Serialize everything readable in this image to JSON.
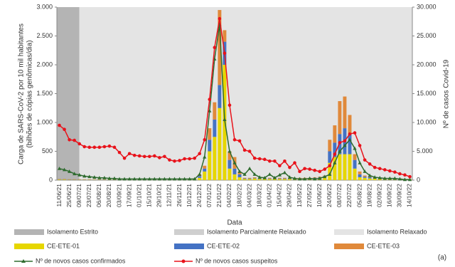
{
  "chart_data": {
    "type": "combo",
    "categories": [
      "11/06/21",
      null,
      "25/06/21",
      null,
      "09/07/21",
      null,
      "23/07/21",
      null,
      "06/08/21",
      null,
      "20/08/21",
      null,
      "03/09/21",
      null,
      "17/09/21",
      null,
      "01/10/21",
      null,
      "15/10/21",
      null,
      "29/10/21",
      null,
      "12/11/21",
      null,
      "26/11/21",
      null,
      "10/12/21",
      null,
      "24/12/21",
      null,
      "07/01/22",
      null,
      "21/01/22",
      null,
      "04/02/22",
      null,
      "18/02/22",
      null,
      "04/03/22",
      null,
      "18/03/22",
      null,
      "01/04/22",
      null,
      "15/04/22",
      null,
      "29/04/22",
      null,
      "13/05/22",
      null,
      "27/05/22",
      null,
      "10/06/22",
      null,
      "24/06/22",
      null,
      "08/07/22",
      null,
      "22/07/22",
      null,
      "05/08/22",
      null,
      "19/08/22",
      null,
      "02/09/22",
      null,
      "16/09/22",
      null,
      "30/09/22",
      null,
      "14/10/22"
    ],
    "x_label": "Data",
    "y_label": [
      "Carga de SARS-CoV-2 por 10 mil habitantes",
      "(bilhões de cópias genômicas/dia)"
    ],
    "y2_label": "Nº de casos Covid-19",
    "annotation": "(a)",
    "ylim": [
      0,
      3000
    ],
    "yticks": [
      0,
      {
        "value": 500,
        "label": "500"
      },
      {
        "value": 1000,
        "label": "1.000"
      },
      {
        "value": 1500,
        "label": "1.500"
      },
      {
        "value": 2000,
        "label": "2.000"
      },
      {
        "value": 2500,
        "label": "2.500"
      },
      {
        "value": 3000,
        "label": "3.000"
      }
    ],
    "y2lim": [
      0,
      30000
    ],
    "y2ticks": [
      0,
      {
        "value": 5000,
        "label": "5.000"
      },
      {
        "value": 10000,
        "label": "10.000"
      },
      {
        "value": 15000,
        "label": "15.000"
      },
      {
        "value": 20000,
        "label": "20.000"
      },
      {
        "value": 25000,
        "label": "25.000"
      },
      {
        "value": 30000,
        "label": "30.000"
      }
    ],
    "periods": [
      {
        "name": "Isolamento Estrito",
        "color": "#b4b4b4",
        "start": "11/06/21",
        "end": "09/07/21"
      },
      {
        "name": "Isolamento Parcialmente Relaxado",
        "color": "#cfcfcf"
      },
      {
        "name": "Isolamento Relaxado",
        "color": "#e4e4e4",
        "start": "09/07/21",
        "end": "14/10/22"
      }
    ],
    "series": [
      {
        "name": "CE-ETE-01",
        "color": "#e6d600",
        "kind": "bar",
        "values": [
          10,
          10,
          5,
          5,
          5,
          5,
          5,
          5,
          5,
          5,
          5,
          5,
          5,
          5,
          5,
          5,
          5,
          5,
          5,
          5,
          5,
          5,
          5,
          5,
          5,
          5,
          10,
          20,
          40,
          150,
          500,
          750,
          1250,
          2000,
          200,
          100,
          50,
          20,
          20,
          30,
          20,
          20,
          20,
          20,
          20,
          20,
          20,
          20,
          20,
          20,
          20,
          30,
          40,
          60,
          300,
          400,
          450,
          450,
          450,
          200,
          50,
          40,
          30,
          30,
          20,
          20,
          20,
          10,
          10,
          10,
          10
        ]
      },
      {
        "name": "CE-ETE-02",
        "color": "#4472c4",
        "kind": "bar",
        "values": [
          5,
          5,
          5,
          5,
          5,
          5,
          5,
          5,
          5,
          5,
          5,
          5,
          5,
          5,
          5,
          5,
          5,
          5,
          5,
          5,
          5,
          5,
          5,
          5,
          5,
          5,
          5,
          5,
          30,
          50,
          200,
          300,
          400,
          400,
          150,
          100,
          50,
          10,
          10,
          10,
          10,
          10,
          10,
          10,
          10,
          10,
          10,
          10,
          10,
          10,
          10,
          10,
          10,
          10,
          200,
          250,
          350,
          450,
          350,
          150,
          50,
          20,
          20,
          10,
          10,
          10,
          10,
          10,
          10,
          5,
          5
        ]
      },
      {
        "name": "CE-ETE-03",
        "color": "#e0893a",
        "kind": "bar",
        "values": [
          5,
          5,
          5,
          5,
          5,
          5,
          5,
          5,
          5,
          5,
          5,
          5,
          5,
          5,
          5,
          5,
          5,
          5,
          5,
          5,
          5,
          5,
          5,
          5,
          5,
          5,
          5,
          5,
          30,
          50,
          200,
          300,
          1300,
          200,
          150,
          200,
          50,
          10,
          10,
          10,
          10,
          10,
          10,
          10,
          10,
          10,
          10,
          10,
          10,
          10,
          10,
          10,
          10,
          10,
          200,
          300,
          570,
          550,
          330,
          100,
          50,
          20,
          20,
          10,
          10,
          10,
          10,
          10,
          10,
          5,
          5
        ]
      },
      {
        "name": "Nº de novos casos confirmados",
        "color": "#2e6b2e",
        "kind": "line",
        "marker": "triangle",
        "axis": "y2",
        "values": [
          2000,
          1800,
          1500,
          1100,
          900,
          700,
          600,
          500,
          400,
          400,
          300,
          300,
          200,
          200,
          200,
          200,
          200,
          200,
          200,
          200,
          200,
          200,
          200,
          200,
          200,
          200,
          200,
          200,
          1000,
          4000,
          12000,
          21000,
          27000,
          10500,
          5000,
          3000,
          1500,
          1000,
          2000,
          1000,
          500,
          400,
          1000,
          400,
          900,
          1300,
          500,
          300,
          200,
          200,
          300,
          200,
          300,
          600,
          1000,
          3000,
          5000,
          6000,
          7000,
          5500,
          3000,
          1500,
          800,
          500,
          400,
          300,
          300,
          300,
          200,
          100,
          100
        ]
      },
      {
        "name": "Nº de novos casos suspeitos",
        "color": "#e8121a",
        "kind": "line",
        "marker": "circle",
        "axis": "y2",
        "values": [
          9500,
          8800,
          7000,
          6900,
          6300,
          5800,
          5700,
          5700,
          5700,
          5800,
          5900,
          5700,
          4800,
          3800,
          4600,
          4300,
          4200,
          4100,
          4100,
          4200,
          3900,
          4100,
          3500,
          3300,
          3400,
          3700,
          3700,
          3800,
          4600,
          7000,
          14000,
          23000,
          28000,
          22000,
          13000,
          7000,
          6800,
          5200,
          5000,
          3800,
          3700,
          3600,
          3300,
          3300,
          2500,
          3300,
          2200,
          3000,
          1500,
          2000,
          1900,
          1700,
          1500,
          1900,
          2500,
          4500,
          6500,
          6800,
          8000,
          8200,
          6000,
          3500,
          2800,
          2200,
          2000,
          1800,
          1600,
          1400,
          1100,
          900,
          600
        ]
      }
    ]
  }
}
